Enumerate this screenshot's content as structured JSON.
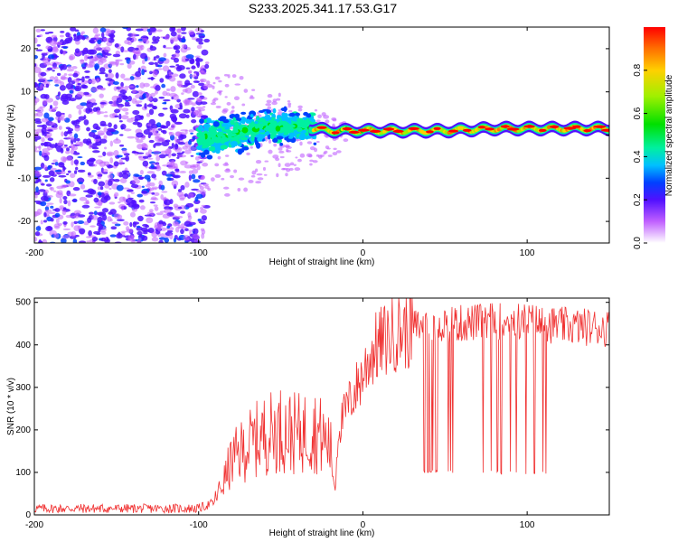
{
  "title": "S233.2025.341.17.53.G17",
  "chart_data": [
    {
      "type": "heatmap",
      "xlabel": "Height of straight line (km)",
      "ylabel": "Frequency (Hz)",
      "xlim": [
        -200,
        150
      ],
      "ylim": [
        -25,
        25
      ],
      "x_ticks": [
        "-200",
        "-100",
        "0",
        "100"
      ],
      "x_tick_values": [
        -200,
        -100,
        0,
        100
      ],
      "y_ticks": [
        "-20",
        "-10",
        "0",
        "10",
        "20"
      ],
      "y_tick_values": [
        -20,
        -10,
        0,
        10,
        20
      ],
      "colorbar": {
        "label": "Normalized spectral amplitude",
        "range": [
          0,
          1
        ],
        "ticks": [
          "0.0",
          "0.2",
          "0.4",
          "0.6",
          "0.8"
        ],
        "tick_values": [
          0.0,
          0.2,
          0.4,
          0.6,
          0.8
        ]
      },
      "regions": [
        {
          "x_range": [
            -200,
            -100
          ],
          "frequency_range": [
            -25,
            25
          ],
          "amplitude": "0.0-0.2",
          "description": "noise"
        },
        {
          "x_range": [
            -100,
            -30
          ],
          "frequency_center": 0,
          "frequency_spread": 8,
          "amplitude": "0.2-0.5"
        },
        {
          "x_range": [
            -30,
            150
          ],
          "frequency_center": 1.5,
          "frequency_spread": 2,
          "amplitude": "0.6-1.0"
        }
      ],
      "ridge": {
        "x": [
          -100,
          -80,
          -60,
          -40,
          -20,
          0,
          20,
          50,
          80,
          100,
          150
        ],
        "frequency": [
          -1,
          0,
          2,
          2,
          1,
          1,
          1,
          1,
          1.5,
          1.5,
          1.5
        ]
      }
    },
    {
      "type": "line",
      "xlabel": "Height of straight line (km)",
      "ylabel": "SNR (10 * v/v)",
      "xlim": [
        -200,
        150
      ],
      "ylim": [
        0,
        510
      ],
      "x_ticks": [
        "-200",
        "-100",
        "0",
        "100"
      ],
      "x_tick_values": [
        -200,
        -100,
        0,
        100
      ],
      "y_ticks": [
        "0",
        "100",
        "200",
        "300",
        "400",
        "500"
      ],
      "y_tick_values": [
        0,
        100,
        200,
        300,
        400,
        500
      ],
      "series": [
        {
          "name": "SNR",
          "color": "#f03030",
          "x": [
            -200,
            -100,
            -90,
            -85,
            -80,
            -70,
            -60,
            -50,
            -40,
            -30,
            -20,
            -17,
            -15,
            -10,
            0,
            5,
            10,
            20,
            30,
            40,
            60,
            80,
            100,
            120,
            150
          ],
          "y": [
            15,
            15,
            30,
            60,
            100,
            130,
            150,
            160,
            150,
            160,
            130,
            50,
            200,
            250,
            330,
            380,
            400,
            430,
            440,
            450,
            450,
            455,
            455,
            445,
            440
          ]
        }
      ],
      "dropouts": {
        "x_range": [
          35,
          113
        ],
        "y_floor": 95
      }
    }
  ]
}
